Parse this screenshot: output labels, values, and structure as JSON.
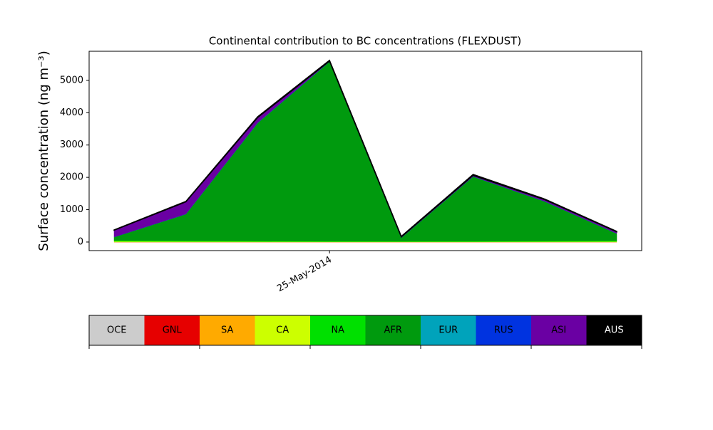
{
  "chart_data": {
    "type": "stackedarea",
    "title": "Continental contribution to BC concentrations (FLEXDUST)",
    "y_label": "Surface concentration (ng m⁻³)",
    "categories": [
      null,
      null,
      null,
      "25-May-2014",
      null,
      null,
      null,
      null
    ],
    "ylim": [
      -265,
      5900
    ],
    "yticks": [
      0,
      1000,
      2000,
      3000,
      4000,
      5000
    ],
    "series": [
      {
        "name": "OCE",
        "color": "#cccccc",
        "values": [
          0,
          0,
          0,
          0,
          0,
          0,
          0,
          0
        ]
      },
      {
        "name": "GNL",
        "color": "#e60000",
        "values": [
          0,
          0,
          0,
          0,
          0,
          0,
          0,
          0
        ]
      },
      {
        "name": "SA",
        "color": "#ffaa00",
        "values": [
          2,
          2,
          2,
          2,
          2,
          2,
          2,
          2
        ]
      },
      {
        "name": "CA",
        "color": "#ccff00",
        "values": [
          20,
          15,
          10,
          8,
          8,
          8,
          10,
          15
        ]
      },
      {
        "name": "NA",
        "color": "#00e000",
        "values": [
          30,
          25,
          20,
          15,
          12,
          15,
          20,
          25
        ]
      },
      {
        "name": "AFR",
        "color": "#009a0e",
        "values": [
          100,
          820,
          3650,
          5550,
          110,
          2000,
          1220,
          220
        ]
      },
      {
        "name": "EUR",
        "color": "#00a3bb",
        "values": [
          2,
          3,
          5,
          5,
          2,
          3,
          3,
          2
        ]
      },
      {
        "name": "RUS",
        "color": "#0033e0",
        "values": [
          2,
          3,
          5,
          5,
          2,
          3,
          3,
          2
        ]
      },
      {
        "name": "ASI",
        "color": "#6a00a3",
        "values": [
          210,
          375,
          160,
          10,
          20,
          30,
          50,
          50
        ]
      },
      {
        "name": "AUS",
        "color": "#000000",
        "values": [
          10,
          15,
          25,
          25,
          20,
          30,
          20,
          15
        ]
      }
    ]
  }
}
